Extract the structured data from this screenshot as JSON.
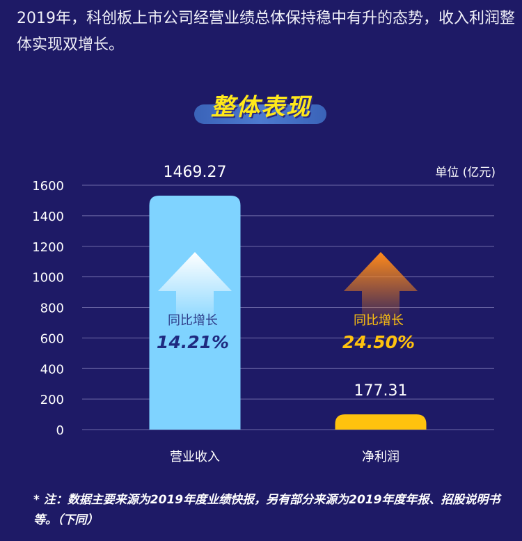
{
  "intro_text": "2019年，科创板上市公司经营业绩总体保持稳中有升的态势，收入利润整体实现双增长。",
  "section_title": "整体表现",
  "note": "* 注：数据主要来源为2019年度业绩快报，另有部分来源为2019年度年报、招股说明书等。（下同）",
  "colors": {
    "background": "#1e1a66",
    "revenue": "#7fd3ff",
    "profit": "#ffc20e",
    "title": "#ffe81a"
  },
  "chart_data": {
    "type": "bar",
    "unit_label": "单位 (亿元)",
    "categories": [
      "营业收入",
      "净利润"
    ],
    "values": [
      1469.27,
      177.31
    ],
    "value_labels": [
      "1469.27",
      "177.31"
    ],
    "growth": [
      {
        "label": "同比增长",
        "value": "14.21%",
        "icon": "arrow-up-icon"
      },
      {
        "label": "同比增长",
        "value": "24.50%",
        "icon": "arrow-up-icon"
      }
    ],
    "ylim": [
      0,
      1600
    ],
    "yticks": [
      0,
      200,
      400,
      600,
      800,
      1000,
      1200,
      1400,
      1600
    ],
    "grid": true
  }
}
